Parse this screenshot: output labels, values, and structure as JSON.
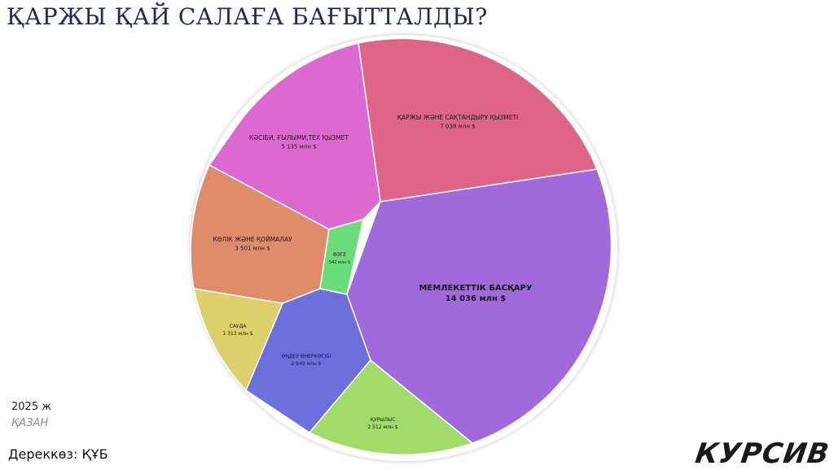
{
  "title": "ҚАРЖЫ ҚАЙ САЛАҒА БАҒЫТТАЛДЫ?",
  "year": "2025 ж",
  "month": "ҚАЗАН",
  "source": "Дереккөз: ҚҰБ",
  "logo": "КУРСИВ",
  "chart_data": {
    "type": "voronoi-treemap",
    "unit": "млн $",
    "items": [
      {
        "name": "МЕМЛЕКЕТТІК БАСҚАРУ",
        "value": 14036,
        "display": "14 036 млн $",
        "color": "#a069dc"
      },
      {
        "name": "ҚАРЖЫ ЖӘНЕ САҚТАНДЫРУ ҚЫЗМЕТІ",
        "value": 7038,
        "display": "7 038 млн $",
        "color": "#dd6686"
      },
      {
        "name": "КӘСІБИ, ҒЫЛЫМИ,ТЕХ ҚЫЗМЕТ",
        "value": 5135,
        "display": "5 135 млн $",
        "color": "#dc69d0"
      },
      {
        "name": "КӨЛІК ЖӘНЕ ҚОЙМАЛАУ",
        "value": 3501,
        "display": "3 501 млн $",
        "color": "#df8c6a"
      },
      {
        "name": "ӨҢДЕУ ӨНЕРКӘСІБІ",
        "value": 2949,
        "display": "2 949 млн $",
        "color": "#6b70dd"
      },
      {
        "name": "ҚҰРЫЛЫС",
        "value": 2512,
        "display": "2 512 млн $",
        "color": "#a1db69"
      },
      {
        "name": "САУДА",
        "value": 1313,
        "display": "1 313 млн $",
        "color": "#dcd06a"
      },
      {
        "name": "ӨЗГЕ",
        "value": 542,
        "display": "542 млн $",
        "color": "#6adc79"
      }
    ]
  }
}
